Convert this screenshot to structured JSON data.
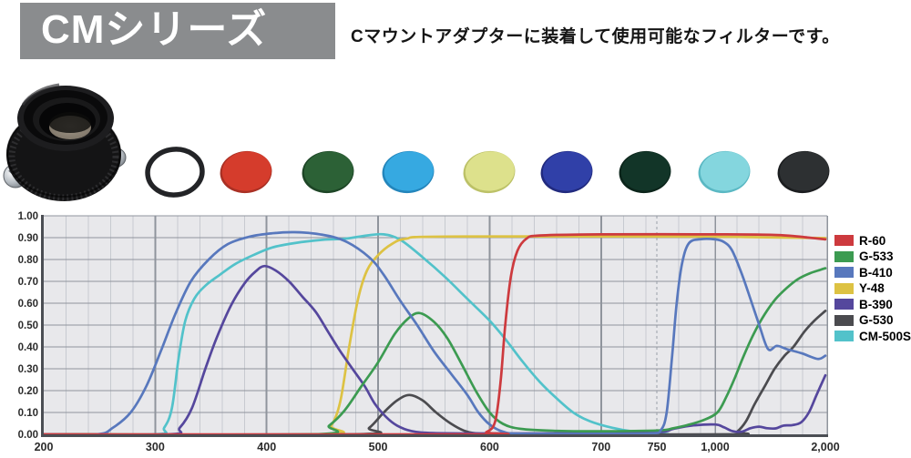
{
  "header": {
    "title": "CMシリーズ",
    "subtitle": "Cマウントアダプターに装着して使用可能なフィルターです。"
  },
  "filters": [
    {
      "name": "empty-ring",
      "fill": "#ffffff",
      "rim": "#232427",
      "ring": true
    },
    {
      "name": "red-filter",
      "fill": "#d53c2c",
      "rim": "#a93024"
    },
    {
      "name": "dark-green-filter",
      "fill": "#2c6136",
      "rim": "#1d4526"
    },
    {
      "name": "sky-blue-filter",
      "fill": "#36a9e1",
      "rim": "#2385bb"
    },
    {
      "name": "pale-yellow-filter",
      "fill": "#dde18c",
      "rim": "#bcc167"
    },
    {
      "name": "blue-filter",
      "fill": "#3040a8",
      "rim": "#212a7e"
    },
    {
      "name": "deep-green-filter",
      "fill": "#123528",
      "rim": "#0b241a"
    },
    {
      "name": "light-cyan-filter",
      "fill": "#84d6de",
      "rim": "#5ab8c3"
    },
    {
      "name": "dark-gray-filter",
      "fill": "#2d3032",
      "rim": "#1b1d1f"
    }
  ],
  "chart_data": {
    "type": "line",
    "title": "",
    "xlabel": "",
    "ylabel": "",
    "ylim": [
      0,
      1
    ],
    "grid": true,
    "legend_position": "right",
    "x_scale_note": "linear 200-750 nm, compressed beyond 750",
    "x_ticks": [
      {
        "value": 200,
        "label": "200"
      },
      {
        "value": 300,
        "label": "300"
      },
      {
        "value": 400,
        "label": "400"
      },
      {
        "value": 500,
        "label": "500"
      },
      {
        "value": 600,
        "label": "600"
      },
      {
        "value": 700,
        "label": "700"
      },
      {
        "value": 750,
        "label": "750"
      },
      {
        "value": 1000,
        "label": "1,000"
      },
      {
        "value": 2000,
        "label": "2,000"
      }
    ],
    "y_tick_labels": [
      "0.00",
      "0.10",
      "0.20",
      "0.30",
      "0.40",
      "0.50",
      "0.60",
      "0.70",
      "0.80",
      "0.90",
      "1.00"
    ],
    "series": [
      {
        "name": "R-60",
        "color": "#cd3a3e",
        "points": [
          [
            200,
            0
          ],
          [
            585,
            0
          ],
          [
            597,
            0.01
          ],
          [
            605,
            0.06
          ],
          [
            610,
            0.25
          ],
          [
            614,
            0.5
          ],
          [
            619,
            0.72
          ],
          [
            625,
            0.84
          ],
          [
            633,
            0.895
          ],
          [
            645,
            0.91
          ],
          [
            700,
            0.915
          ],
          [
            1100,
            0.915
          ],
          [
            1500,
            0.913
          ],
          [
            1700,
            0.908
          ],
          [
            1850,
            0.9
          ],
          [
            2000,
            0.892
          ]
        ]
      },
      {
        "name": "G-533",
        "color": "#3c9b51",
        "points": [
          [
            200,
            0
          ],
          [
            442,
            0
          ],
          [
            456,
            0.04
          ],
          [
            470,
            0.11
          ],
          [
            485,
            0.22
          ],
          [
            500,
            0.33
          ],
          [
            515,
            0.46
          ],
          [
            527,
            0.53
          ],
          [
            537,
            0.555
          ],
          [
            550,
            0.515
          ],
          [
            562,
            0.44
          ],
          [
            575,
            0.32
          ],
          [
            588,
            0.195
          ],
          [
            600,
            0.1
          ],
          [
            612,
            0.048
          ],
          [
            628,
            0.025
          ],
          [
            660,
            0.016
          ],
          [
            700,
            0.014
          ],
          [
            760,
            0.018
          ],
          [
            820,
            0.028
          ],
          [
            880,
            0.042
          ],
          [
            950,
            0.065
          ],
          [
            1020,
            0.1
          ],
          [
            1100,
            0.17
          ],
          [
            1180,
            0.26
          ],
          [
            1260,
            0.36
          ],
          [
            1350,
            0.46
          ],
          [
            1450,
            0.55
          ],
          [
            1550,
            0.62
          ],
          [
            1650,
            0.67
          ],
          [
            1750,
            0.71
          ],
          [
            1850,
            0.735
          ],
          [
            1950,
            0.752
          ],
          [
            2000,
            0.76
          ]
        ]
      },
      {
        "name": "B-410",
        "color": "#5878bd",
        "points": [
          [
            200,
            0
          ],
          [
            248,
            0
          ],
          [
            262,
            0.03
          ],
          [
            278,
            0.1
          ],
          [
            292,
            0.22
          ],
          [
            305,
            0.38
          ],
          [
            318,
            0.55
          ],
          [
            332,
            0.7
          ],
          [
            348,
            0.8
          ],
          [
            365,
            0.87
          ],
          [
            385,
            0.905
          ],
          [
            405,
            0.92
          ],
          [
            425,
            0.925
          ],
          [
            448,
            0.915
          ],
          [
            470,
            0.885
          ],
          [
            492,
            0.81
          ],
          [
            505,
            0.73
          ],
          [
            520,
            0.61
          ],
          [
            535,
            0.5
          ],
          [
            550,
            0.38
          ],
          [
            565,
            0.28
          ],
          [
            580,
            0.18
          ],
          [
            590,
            0.1
          ],
          [
            600,
            0.045
          ],
          [
            612,
            0.012
          ],
          [
            628,
            0.003
          ],
          [
            700,
            0.002
          ],
          [
            745,
            0.004
          ],
          [
            768,
            0.02
          ],
          [
            792,
            0.1
          ],
          [
            815,
            0.35
          ],
          [
            835,
            0.6
          ],
          [
            858,
            0.78
          ],
          [
            888,
            0.875
          ],
          [
            940,
            0.893
          ],
          [
            1000,
            0.892
          ],
          [
            1080,
            0.88
          ],
          [
            1150,
            0.845
          ],
          [
            1230,
            0.75
          ],
          [
            1300,
            0.65
          ],
          [
            1400,
            0.5
          ],
          [
            1480,
            0.39
          ],
          [
            1560,
            0.405
          ],
          [
            1650,
            0.39
          ],
          [
            1790,
            0.37
          ],
          [
            1930,
            0.345
          ],
          [
            2000,
            0.36
          ]
        ]
      },
      {
        "name": "Y-48",
        "color": "#ddc243",
        "points": [
          [
            200,
            0
          ],
          [
            448,
            0
          ],
          [
            458,
            0.04
          ],
          [
            466,
            0.15
          ],
          [
            474,
            0.4
          ],
          [
            482,
            0.62
          ],
          [
            490,
            0.75
          ],
          [
            500,
            0.82
          ],
          [
            512,
            0.87
          ],
          [
            525,
            0.895
          ],
          [
            560,
            0.905
          ],
          [
            900,
            0.905
          ],
          [
            1400,
            0.902
          ],
          [
            2000,
            0.898
          ]
        ]
      },
      {
        "name": "B-390",
        "color": "#55479d",
        "points": [
          [
            200,
            0
          ],
          [
            312,
            0
          ],
          [
            322,
            0.03
          ],
          [
            333,
            0.12
          ],
          [
            345,
            0.3
          ],
          [
            355,
            0.44
          ],
          [
            368,
            0.59
          ],
          [
            380,
            0.69
          ],
          [
            390,
            0.745
          ],
          [
            398,
            0.77
          ],
          [
            408,
            0.75
          ],
          [
            420,
            0.7
          ],
          [
            432,
            0.63
          ],
          [
            444,
            0.56
          ],
          [
            455,
            0.47
          ],
          [
            466,
            0.38
          ],
          [
            477,
            0.3
          ],
          [
            488,
            0.22
          ],
          [
            497,
            0.14
          ],
          [
            507,
            0.08
          ],
          [
            517,
            0.04
          ],
          [
            530,
            0.015
          ],
          [
            550,
            0.006
          ],
          [
            600,
            0.004
          ],
          [
            680,
            0.005
          ],
          [
            750,
            0.01
          ],
          [
            820,
            0.025
          ],
          [
            900,
            0.04
          ],
          [
            1000,
            0.045
          ],
          [
            1080,
            0.032
          ],
          [
            1160,
            0.014
          ],
          [
            1240,
            0.012
          ],
          [
            1320,
            0.028
          ],
          [
            1400,
            0.035
          ],
          [
            1470,
            0.028
          ],
          [
            1550,
            0.027
          ],
          [
            1620,
            0.04
          ],
          [
            1700,
            0.042
          ],
          [
            1780,
            0.055
          ],
          [
            1850,
            0.1
          ],
          [
            1920,
            0.18
          ],
          [
            2000,
            0.27
          ]
        ]
      },
      {
        "name": "G-530",
        "color": "#4b4b4f",
        "points": [
          [
            200,
            0
          ],
          [
            478,
            0
          ],
          [
            492,
            0.03
          ],
          [
            505,
            0.1
          ],
          [
            517,
            0.155
          ],
          [
            528,
            0.18
          ],
          [
            540,
            0.155
          ],
          [
            552,
            0.1
          ],
          [
            565,
            0.05
          ],
          [
            578,
            0.015
          ],
          [
            592,
            0.003
          ],
          [
            620,
            0
          ],
          [
            1140,
            0
          ],
          [
            1200,
            0.012
          ],
          [
            1280,
            0.06
          ],
          [
            1360,
            0.14
          ],
          [
            1450,
            0.22
          ],
          [
            1540,
            0.3
          ],
          [
            1630,
            0.36
          ],
          [
            1710,
            0.4
          ],
          [
            1810,
            0.47
          ],
          [
            1900,
            0.52
          ],
          [
            2000,
            0.565
          ]
        ]
      },
      {
        "name": "CM-500S",
        "color": "#52c2ca",
        "points": [
          [
            200,
            0
          ],
          [
            300,
            0
          ],
          [
            308,
            0.03
          ],
          [
            315,
            0.12
          ],
          [
            321,
            0.35
          ],
          [
            327,
            0.52
          ],
          [
            335,
            0.62
          ],
          [
            345,
            0.68
          ],
          [
            358,
            0.73
          ],
          [
            372,
            0.78
          ],
          [
            388,
            0.82
          ],
          [
            405,
            0.855
          ],
          [
            425,
            0.875
          ],
          [
            450,
            0.89
          ],
          [
            470,
            0.895
          ],
          [
            490,
            0.91
          ],
          [
            505,
            0.915
          ],
          [
            520,
            0.89
          ],
          [
            540,
            0.81
          ],
          [
            560,
            0.72
          ],
          [
            580,
            0.62
          ],
          [
            600,
            0.52
          ],
          [
            615,
            0.43
          ],
          [
            630,
            0.33
          ],
          [
            645,
            0.24
          ],
          [
            660,
            0.165
          ],
          [
            675,
            0.1
          ],
          [
            690,
            0.06
          ],
          [
            710,
            0.03
          ],
          [
            730,
            0.012
          ],
          [
            760,
            0.004
          ],
          [
            800,
            0.001
          ]
        ]
      }
    ]
  }
}
